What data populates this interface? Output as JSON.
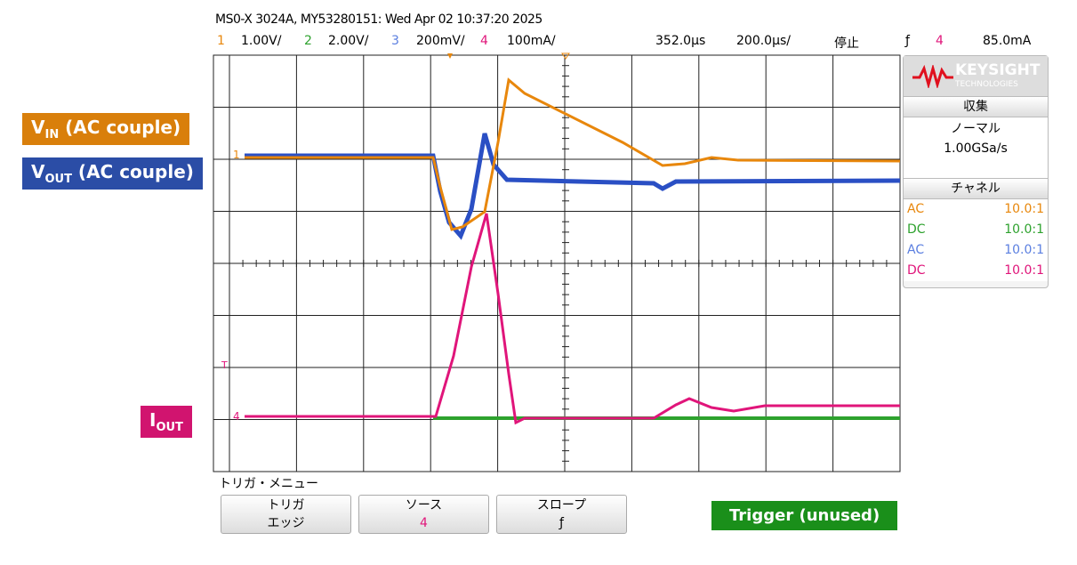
{
  "header": {
    "title": "MS0-X 3024A, MY53280151: Wed Apr 02 10:37:20 2025",
    "channels": [
      {
        "number": "1",
        "scale": "1.00V/",
        "color": "#e8870c"
      },
      {
        "number": "2",
        "scale": "2.00V/",
        "color": "#2ea22e"
      },
      {
        "number": "3",
        "scale": "200mV/",
        "color": "#5b7fe0"
      },
      {
        "number": "4",
        "scale": "100mA/",
        "color": "#e0157a"
      }
    ],
    "delay": "352.0µs",
    "timebase": "200.0µs/",
    "status": "停止",
    "trigger_slope": "ƒ",
    "trigger_source": "4",
    "trigger_level": "85.0mA"
  },
  "markers": {
    "ch1": "1",
    "ch4": "4",
    "trigger": "T"
  },
  "sidebar": {
    "brand": "KEYSIGHT",
    "brand_sub": "TECHNOLOGIES",
    "acquisition_title": "収集",
    "mode": "ノーマル",
    "sample_rate": "1.00GSa/s",
    "channel_title": "チャネル",
    "channel_rows": [
      {
        "coupling": "AC",
        "probe": "10.0:1"
      },
      {
        "coupling": "DC",
        "probe": "10.0:1"
      },
      {
        "coupling": "AC",
        "probe": "10.0:1"
      },
      {
        "coupling": "DC",
        "probe": "10.0:1"
      }
    ]
  },
  "annotations": {
    "vin": {
      "main": "V",
      "sub": "IN",
      "rest": " (AC couple)"
    },
    "vout": {
      "main": "V",
      "sub": "OUT",
      "rest": " (AC couple)"
    },
    "iout": {
      "main": "I",
      "sub": "OUT"
    },
    "trigger_note": "Trigger (unused)"
  },
  "menu": {
    "title": "トリガ・メニュー",
    "buttons": [
      {
        "label": "トリガ",
        "value": "エッジ"
      },
      {
        "label": "ソース",
        "value": "4"
      },
      {
        "label": "スロープ",
        "value": "ƒ"
      }
    ]
  }
}
